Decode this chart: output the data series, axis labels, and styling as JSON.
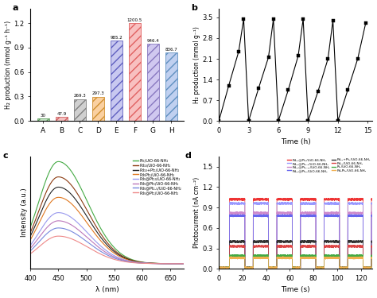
{
  "panel_a": {
    "categories": [
      "A",
      "B",
      "C",
      "D",
      "E",
      "F",
      "G",
      "H"
    ],
    "values": [
      30,
      47.9,
      269.3,
      297.3,
      985.2,
      1200.5,
      946.4,
      836.7
    ],
    "bar_face_colors": [
      "#c8e6c8",
      "#f4c0c0",
      "#d0d0d0",
      "#fad0a0",
      "#c8c8f0",
      "#f8c0c0",
      "#d0c8f0",
      "#c0d0f0"
    ],
    "bar_edge_colors": [
      "#60a060",
      "#d06060",
      "#808080",
      "#d09030",
      "#6060c0",
      "#e06060",
      "#8878c0",
      "#6090c0"
    ],
    "ylabel": "H₂ production (mmol g⁻¹ h⁻¹)",
    "ylim": [
      0,
      1.38
    ],
    "yticks": [
      0.0,
      0.3,
      0.6,
      0.9,
      1.2
    ]
  },
  "panel_b": {
    "ylabel": "H₂ production (mmol g⁻¹)",
    "xlabel": "Time (h)",
    "xlim": [
      0,
      15.5
    ],
    "ylim": [
      0,
      3.8
    ],
    "yticks": [
      0.0,
      0.7,
      1.4,
      2.1,
      2.8,
      3.5
    ],
    "xticks": [
      0,
      3,
      6,
      9,
      12,
      15
    ]
  },
  "panel_c": {
    "xlabel": "λ (nm)",
    "ylabel": "Intensity (a.u.)",
    "xlim": [
      400,
      675
    ],
    "xticks": [
      400,
      450,
      500,
      550,
      600,
      650
    ],
    "legend": [
      "Pt₁/UiO-66-NH₂",
      "Pd₁₀/UiO-66-NH₂",
      "Pd₁₀+Pt₁/UiO-66-NH₂",
      "Pd₅Pt₁/UiO-66-NH₂",
      "Pd₅@Pt₁₀/UiO-66-NH₂",
      "Pd₅@Pt₅/UiO-66-NH₂",
      "Pd₅@Pt₁.₅/UiO-66-NH₂",
      "Pd₅@Pt₁/UiO-66-NH₂"
    ],
    "line_colors": [
      "#44aa44",
      "#8b3a10",
      "#222222",
      "#e07820",
      "#9999ee",
      "#bb77bb",
      "#7788dd",
      "#ee8888"
    ]
  },
  "panel_d": {
    "xlabel": "Time (s)",
    "ylabel": "Photocurrent (nA cm⁻²)",
    "xlim": [
      0,
      130
    ],
    "ylim": [
      0,
      1.65
    ],
    "yticks": [
      0.0,
      0.3,
      0.6,
      0.9,
      1.2,
      1.5
    ],
    "xticks": [
      0,
      20,
      40,
      60,
      80,
      100,
      120
    ],
    "legend_col1": [
      "Pd₁₀@Pt₁/UiO-66-NH₂",
      "Pd₁₀@Pt₀.₅/UiO-66-NH₂",
      "Pd₁₀@Pt₀.₂₅/UiO-66-NH₂",
      "Pd₁₀@Pt₁₀/UiO-66-NH₂"
    ],
    "legend_col2": [
      "Pd₁₀+Pt₁/UiO-66-NH₂",
      "Pd₁₀/UiO-66-NH₂",
      "Pt₁/UiO-66-NH₂",
      "Pd₅Pt₁/UiO-66-NH₂"
    ],
    "line_colors": [
      "#ee3333",
      "#9999ff",
      "#cc88cc",
      "#6666ee",
      "#333333",
      "#dd4444",
      "#44aa44",
      "#f0b050"
    ],
    "amplitudes": [
      1.02,
      0.96,
      0.82,
      0.78,
      0.4,
      0.33,
      0.19,
      0.16
    ]
  },
  "bg_color": "#ffffff"
}
